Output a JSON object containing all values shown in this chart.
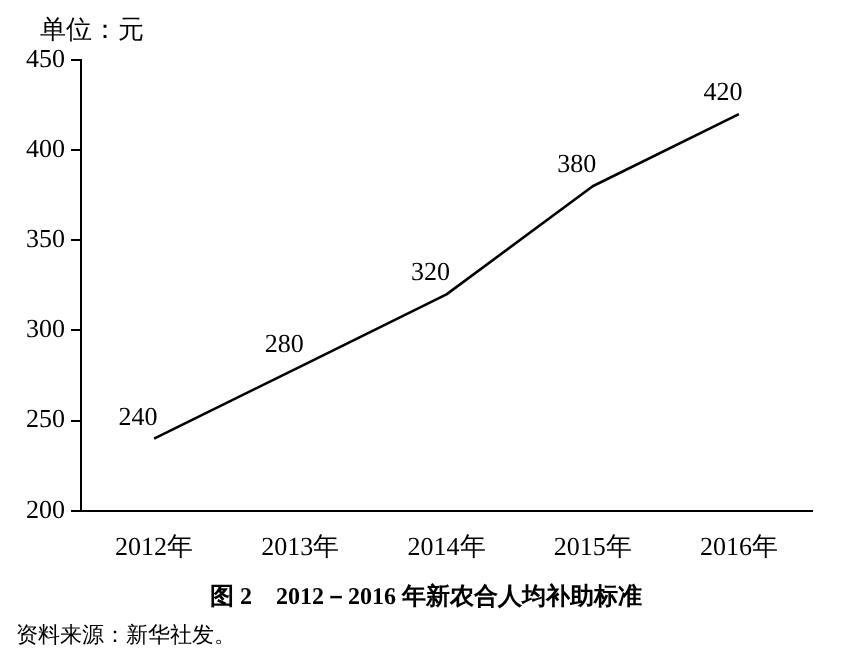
{
  "chart_data": {
    "type": "line",
    "title": "图 2　2012－2016 年新农合人均补助标准",
    "ylabel": "单位：元",
    "annotations": [
      "资料来源：新华社发。"
    ],
    "categories": [
      "2012年",
      "2013年",
      "2014年",
      "2015年",
      "2016年"
    ],
    "series": [
      {
        "color": "#000000",
        "values": [
          240,
          280,
          320,
          380,
          420
        ]
      }
    ],
    "ylim": [
      200,
      450
    ],
    "yticks": [
      200,
      250,
      300,
      350,
      400,
      450
    ],
    "marker": "none",
    "line_style": "solid",
    "data_labels": true
  }
}
